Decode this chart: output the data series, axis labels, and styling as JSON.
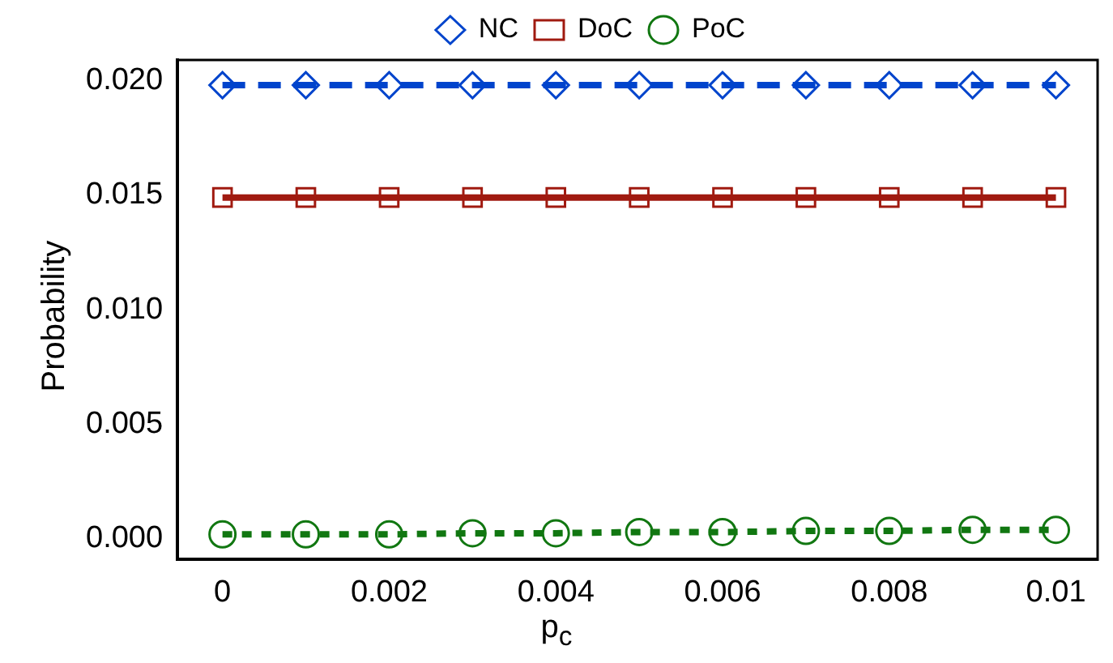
{
  "chart_data": {
    "type": "line",
    "xlabel": "p$_{c}$",
    "ylabel": "Probability",
    "x": [
      0,
      0.001,
      0.002,
      0.003,
      0.004,
      0.005,
      0.006,
      0.007,
      0.008,
      0.009,
      0.01
    ],
    "xlim": [
      -0.00054,
      0.0105
    ],
    "xticks": [
      0,
      0.002,
      0.004,
      0.006,
      0.008,
      {
        "value": 0.01,
        "label": "0.01"
      }
    ],
    "ylim": [
      -0.0009,
      0.0209
    ],
    "yticks": [
      {
        "value": 0,
        "label": "0.000"
      },
      {
        "value": 0.005,
        "label": "0.005"
      },
      {
        "value": 0.01,
        "label": "0.010"
      },
      {
        "value": 0.015,
        "label": "0.015"
      },
      {
        "value": 0.02,
        "label": "0.020"
      }
    ],
    "grid": false,
    "legend": "top",
    "series": [
      {
        "name": "NC",
        "color": "#0044cc",
        "marker": "diamond",
        "line_style": "dashed",
        "values": [
          0.0198,
          0.0198,
          0.0198,
          0.0198,
          0.0198,
          0.0198,
          0.0198,
          0.0198,
          0.0198,
          0.0198,
          0.0198
        ]
      },
      {
        "name": "DoC",
        "color": "#a01a10",
        "marker": "square",
        "line_style": "solid",
        "values": [
          0.0149,
          0.0149,
          0.0149,
          0.0149,
          0.0149,
          0.0149,
          0.0149,
          0.0149,
          0.0149,
          0.0149,
          0.0149
        ]
      },
      {
        "name": "PoC",
        "color": "#117711",
        "marker": "circle",
        "line_style": "dotted",
        "values": [
          0.0002,
          0.0002,
          0.0002,
          0.00025,
          0.00025,
          0.0003,
          0.0003,
          0.00035,
          0.00035,
          0.0004,
          0.0004
        ]
      }
    ]
  }
}
